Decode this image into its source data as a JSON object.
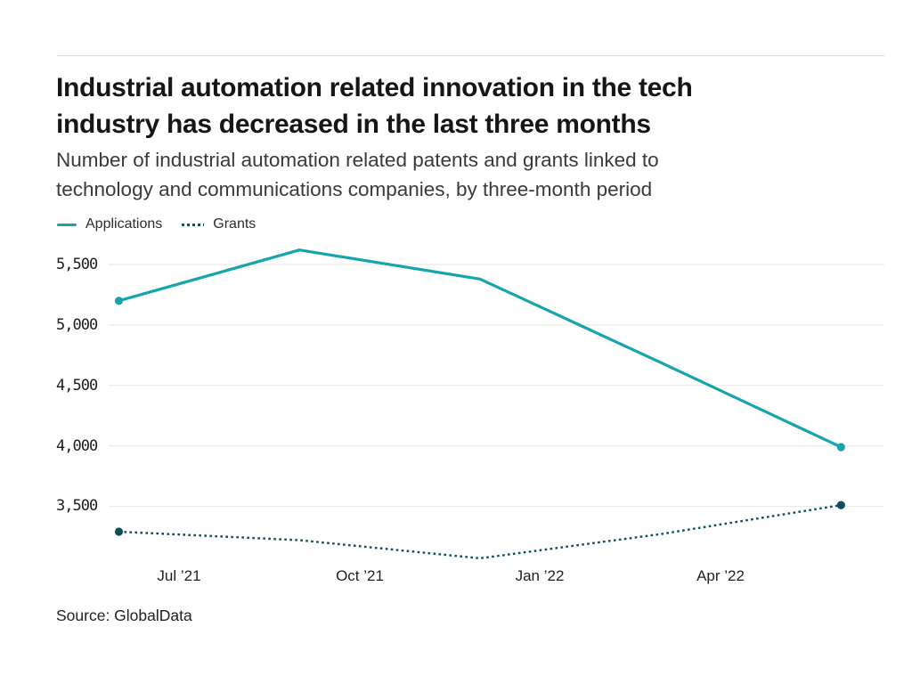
{
  "header": {
    "title_line1": "Industrial automation related innovation in the tech",
    "title_line2": "industry has decreased in the last three months",
    "subtitle_line1": "Number of industrial automation related patents and grants linked to",
    "subtitle_line2": "technology and communications companies, by three-month period"
  },
  "legend": {
    "items": [
      {
        "label": "Applications",
        "style": "solid",
        "color": "#17a5ad"
      },
      {
        "label": "Grants",
        "style": "dotted",
        "color": "#0d4f5a"
      }
    ]
  },
  "chart_data": {
    "type": "line",
    "title": "Industrial automation related innovation in the tech industry has decreased in the last three months",
    "subtitle": "Number of industrial automation related patents and grants linked to technology and communications companies, by three-month period",
    "x_tick_labels": [
      "Jul ’21",
      "Oct ’21",
      "Jan ’22",
      "Apr ’22"
    ],
    "y_ticks": {
      "values": [
        5500,
        5000,
        4500,
        4000,
        3500
      ],
      "labels": [
        "5,500",
        "5,000",
        "4,500",
        "4,000",
        "3,500"
      ]
    },
    "ylim": [
      3500,
      5500
    ],
    "grid": "horizontal",
    "legend_position": "top-left",
    "series": [
      {
        "name": "Applications",
        "style": "solid",
        "color": "#17a5ad",
        "values": [
          5200,
          5620,
          5380,
          4690,
          3990
        ],
        "markers": "endpoints"
      },
      {
        "name": "Grants",
        "style": "dotted",
        "color": "#0d4f5a",
        "values": [
          3290,
          3220,
          3070,
          3270,
          3510
        ],
        "markers": "endpoints"
      }
    ]
  },
  "source": {
    "text": "Source: GlobalData"
  }
}
